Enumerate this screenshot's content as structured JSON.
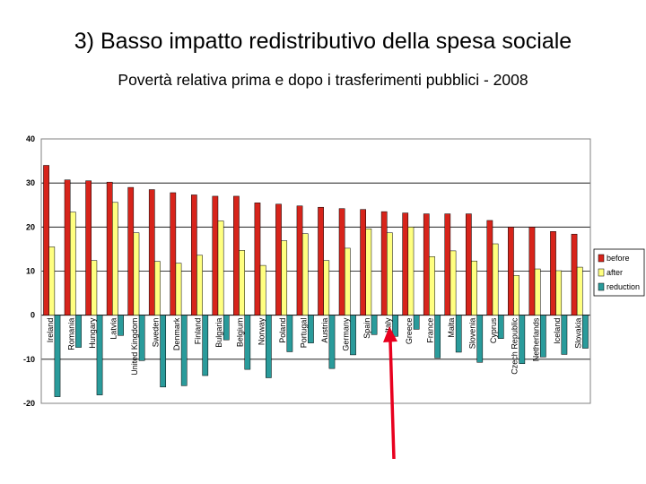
{
  "slide": {
    "title": "3) Basso impatto redistributivo della spesa sociale",
    "subtitle": "Povertà relativa prima e dopo i trasferimenti pubblici - 2008"
  },
  "chart_data": {
    "type": "bar",
    "title": "",
    "xlabel": "",
    "ylabel": "",
    "ylim": [
      -20,
      40
    ],
    "yticks": [
      -20,
      -10,
      0,
      10,
      20,
      30,
      40
    ],
    "grid": true,
    "legend_position": "right",
    "categories": [
      "Ireland",
      "Romania",
      "Hungary",
      "Latvia",
      "United Kingdom",
      "Sweden",
      "Denmark",
      "Finland",
      "Bulgaria",
      "Belgium",
      "Norway",
      "Poland",
      "Portugal",
      "Austria",
      "Germany",
      "Spain",
      "Italy",
      "Greece",
      "France",
      "Malta",
      "Slovenia",
      "Cyprus",
      "Czech Republic",
      "Netherlands",
      "Iceland",
      "Slovakia"
    ],
    "series": [
      {
        "name": "before",
        "color": "#d7241b",
        "values": [
          34,
          30.7,
          30.5,
          30.2,
          29,
          28.5,
          27.8,
          27.3,
          27,
          27,
          25.5,
          25.2,
          24.8,
          24.5,
          24.2,
          24,
          23.5,
          23.2,
          23,
          23,
          23,
          21.5,
          20,
          20,
          19,
          18.4
        ]
      },
      {
        "name": "after",
        "color": "#ffff80",
        "values": [
          15.5,
          23.4,
          12.4,
          25.6,
          18.7,
          12.2,
          11.8,
          13.6,
          21.4,
          14.7,
          11.3,
          16.9,
          18.5,
          12.4,
          15.2,
          19.6,
          18.7,
          20,
          13.3,
          14.6,
          12.3,
          16.2,
          9,
          10.5,
          10.1,
          10.9
        ]
      },
      {
        "name": "reduction",
        "color": "#2a9b9b",
        "values": [
          -18.5,
          -7.3,
          -18.1,
          -4.6,
          -10.3,
          -16.3,
          -16,
          -13.7,
          -5.6,
          -12.3,
          -14.2,
          -8.3,
          -6.3,
          -12.1,
          -9,
          -4.4,
          -4.8,
          -3.2,
          -9.7,
          -8.4,
          -10.7,
          -5.3,
          -11,
          -9.5,
          -8.9,
          -7.5
        ]
      }
    ]
  }
}
